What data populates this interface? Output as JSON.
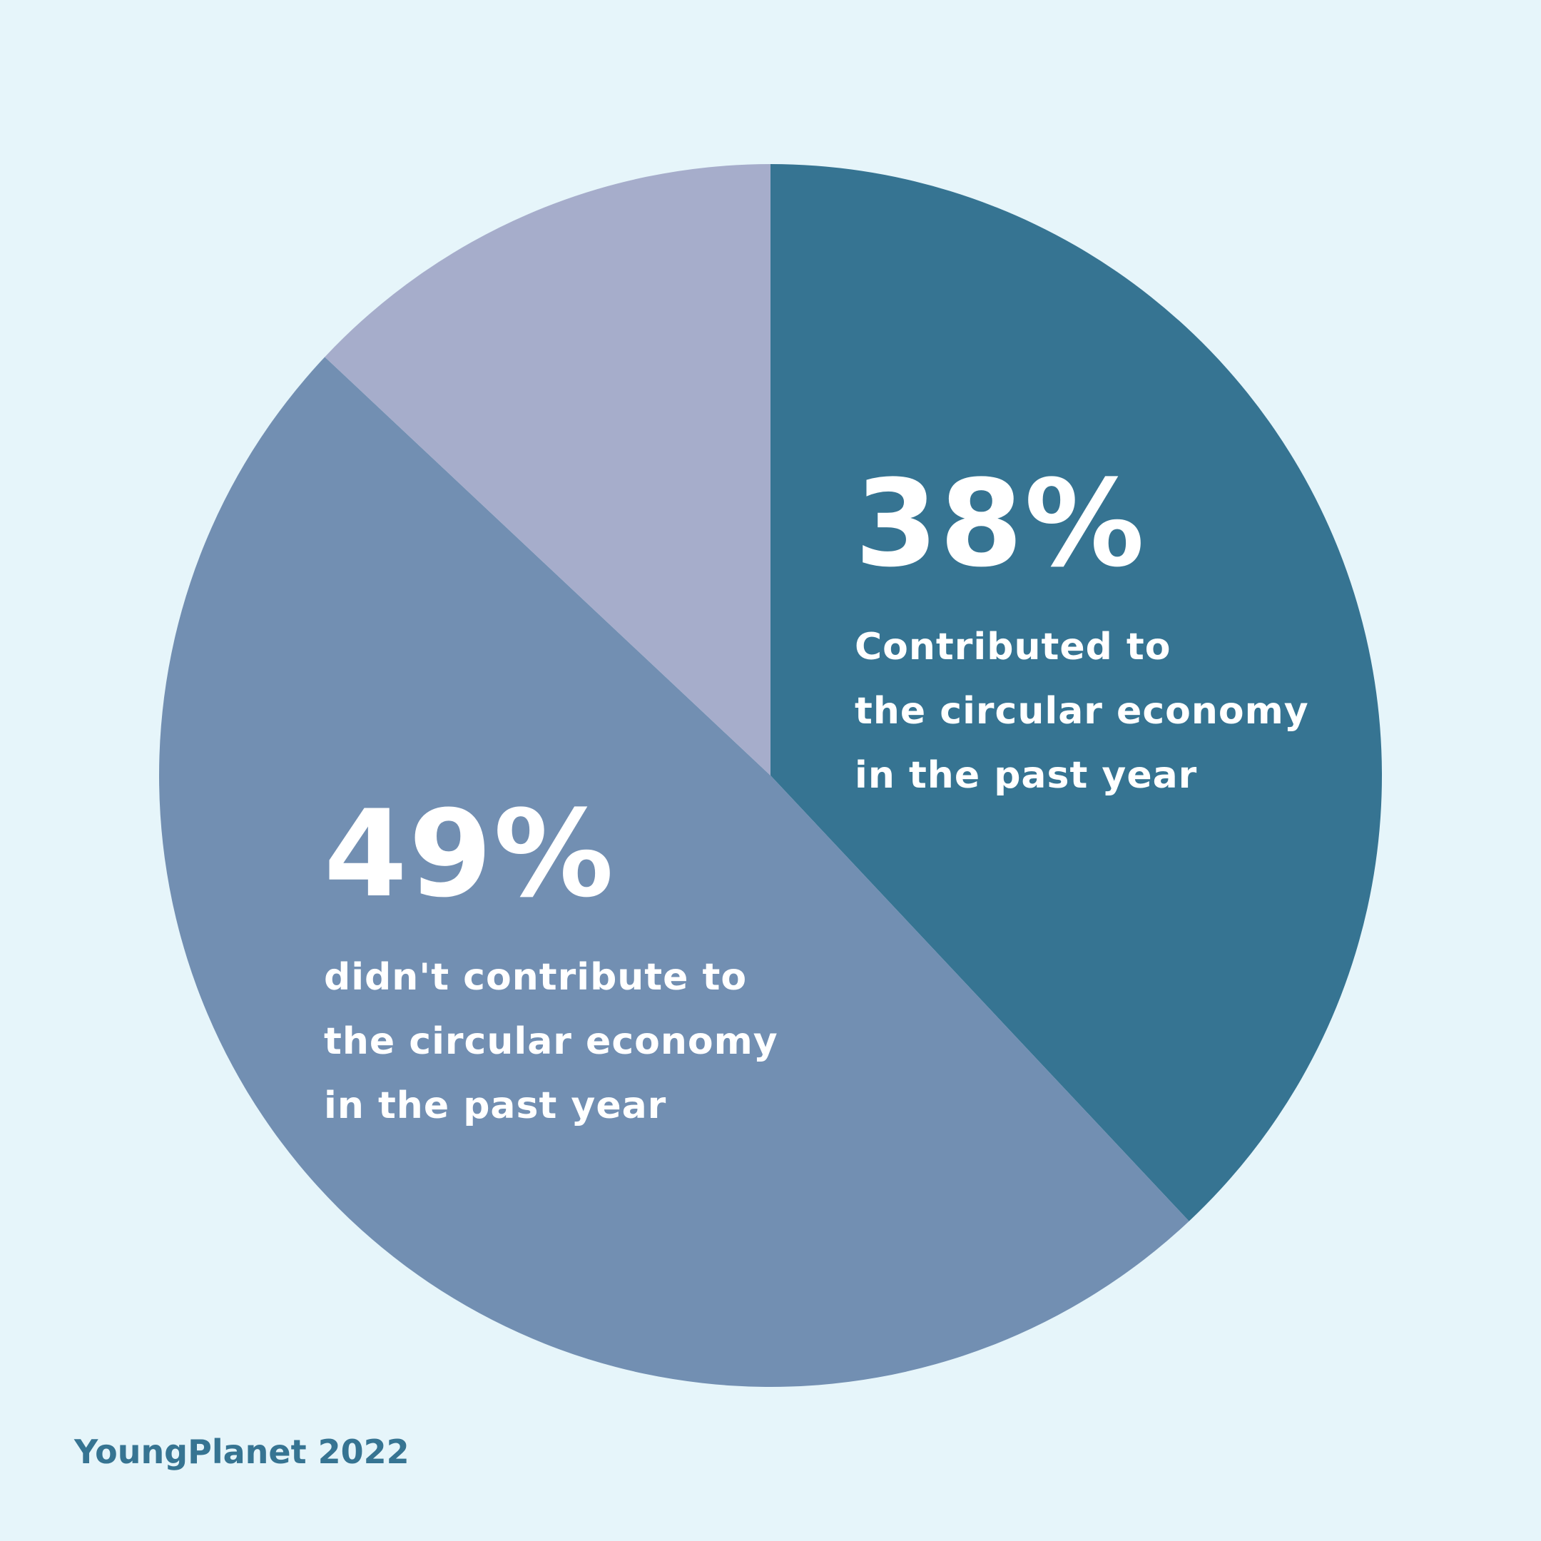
{
  "chart_data": {
    "type": "pie",
    "slices": [
      {
        "value": 38,
        "label": "38%",
        "description": [
          "Contributed to",
          "the circular economy",
          "in the past year"
        ],
        "color": "#367492"
      },
      {
        "value": 49,
        "label": "49%",
        "description": [
          "didn't contribute to",
          "the circular economy",
          "in the past year"
        ],
        "color": "#728fb2"
      },
      {
        "value": 13,
        "color": "#a6adcb"
      }
    ],
    "start_angle": "12 o'clock",
    "direction": "clockwise"
  },
  "source": {
    "text": "YoungPlanet 2022",
    "color": "#367492"
  }
}
